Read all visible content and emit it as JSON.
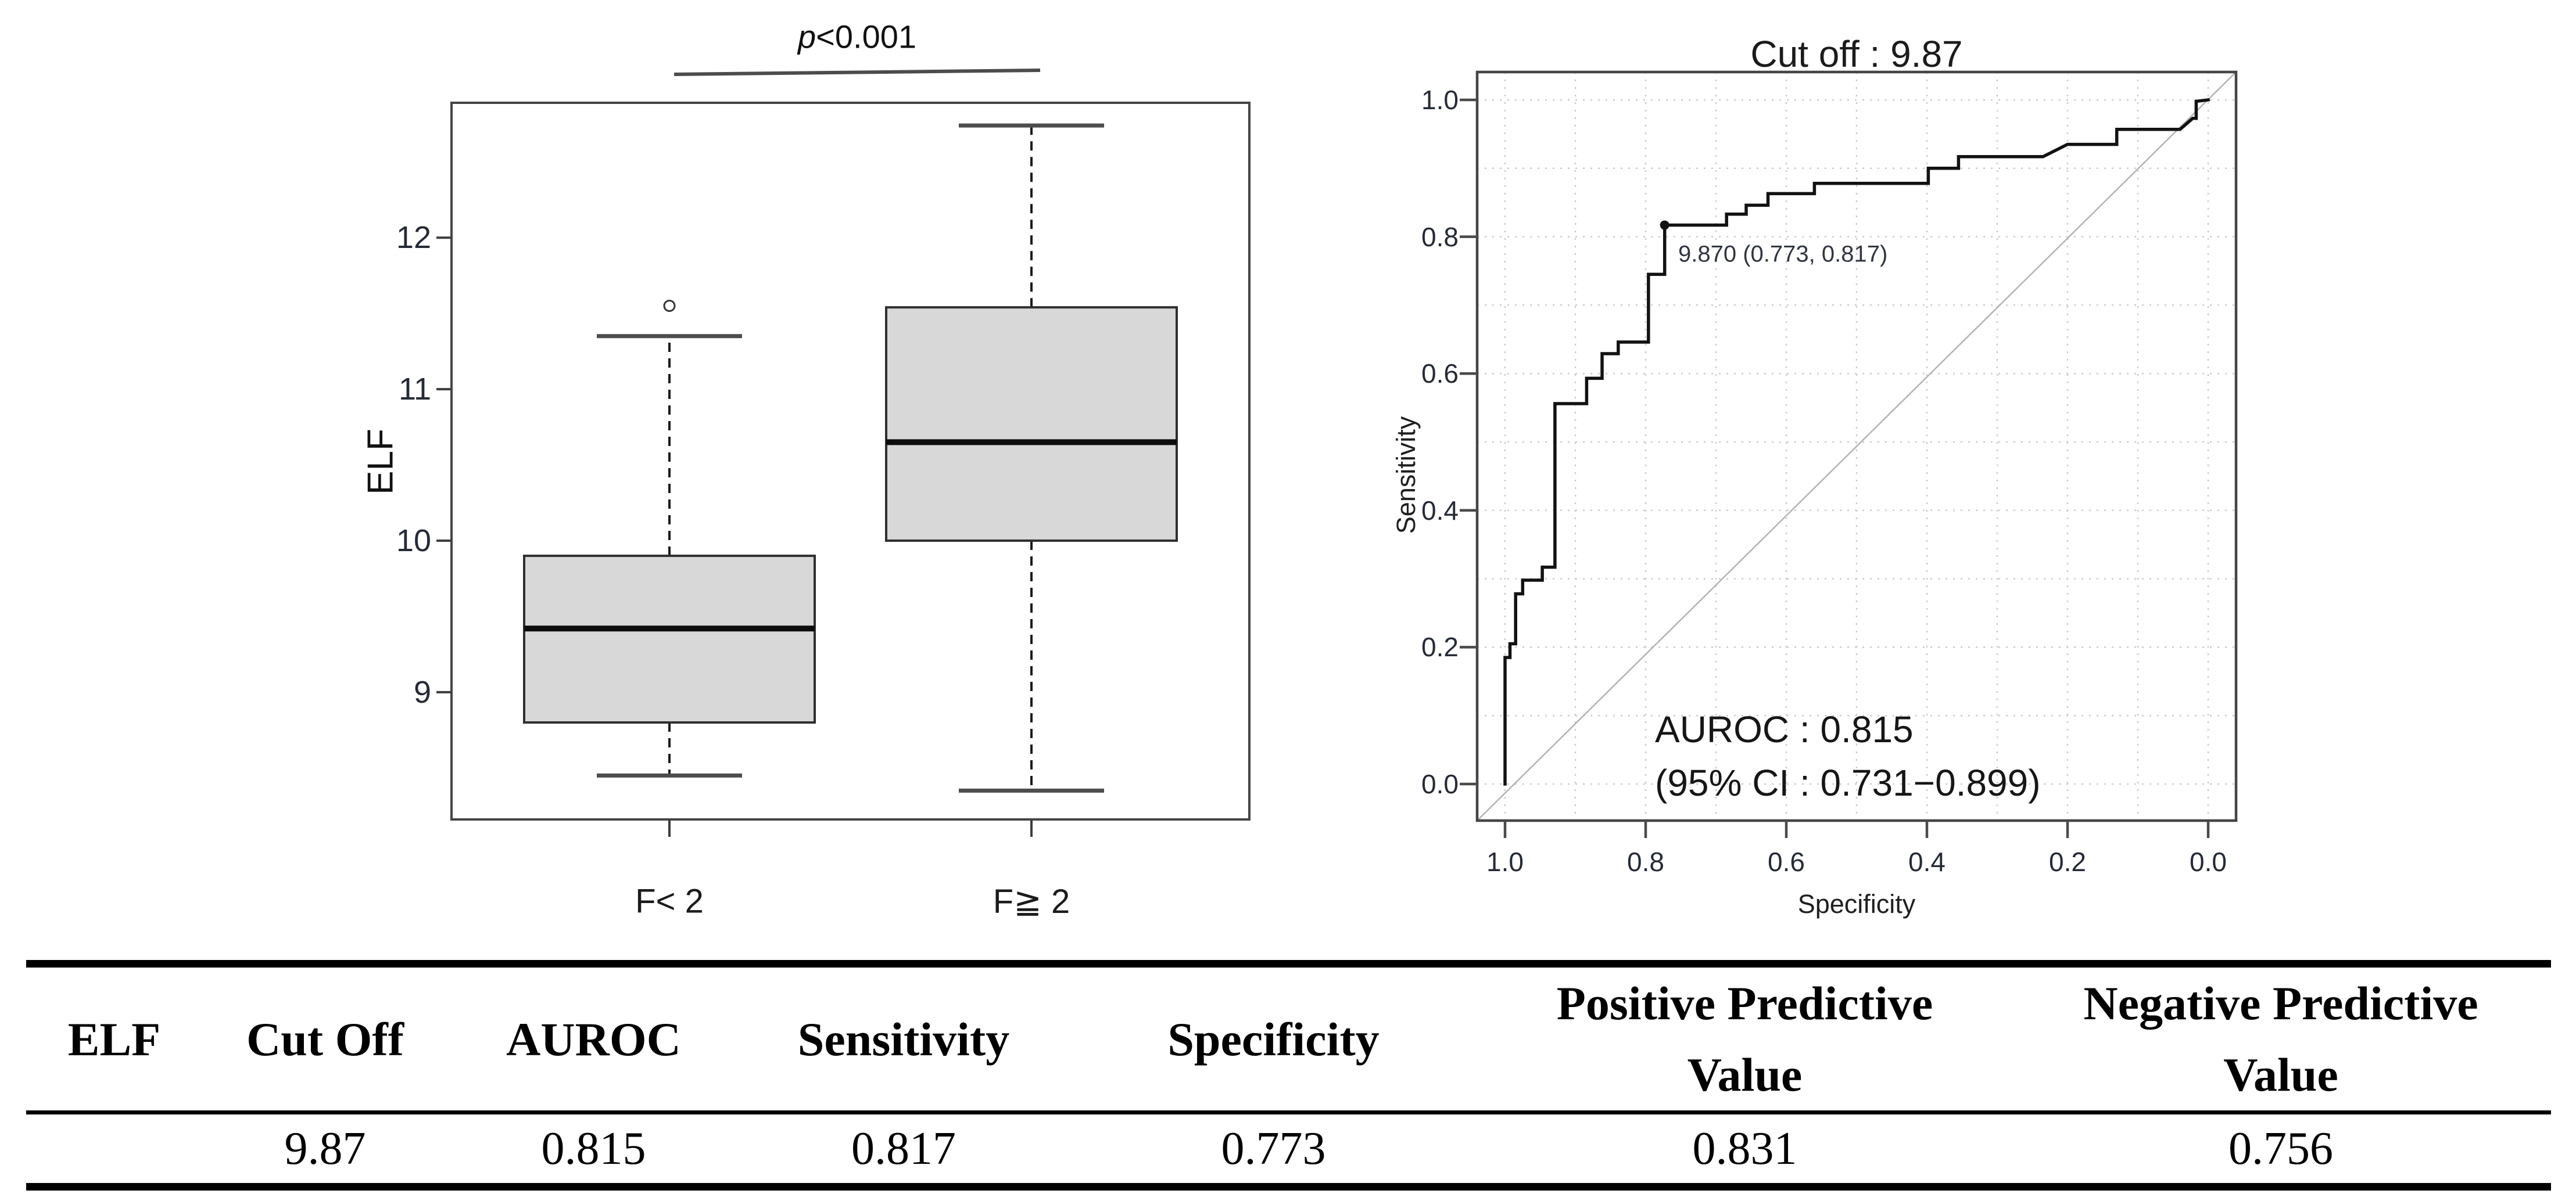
{
  "colors": {
    "background": "#ffffff",
    "box_fill": "#d8d8d8",
    "box_stroke": "#2f2f2f",
    "median": "#0d0d0d",
    "whisker": "#1a1a1a",
    "whisker_cap": "#4d4d4d",
    "frame": "#454545",
    "grid": "#cccccc",
    "diagonal": "#b3b3b3",
    "roc_curve": "#121212",
    "text": "#1b1b1b",
    "table_rule": "#000000"
  },
  "chart_data": [
    {
      "type": "box",
      "name": "elf-by-fibrosis-boxplot",
      "ylabel": "ELF",
      "ylim": [
        8.16,
        12.89
      ],
      "y_ticks": [
        9,
        10,
        11,
        12
      ],
      "grid": false,
      "p_italic": "p",
      "p_rest": "<0.001",
      "p_annotation": "p<0.001",
      "categories": [
        "F< 2",
        "F≧ 2"
      ],
      "boxes": [
        {
          "label": "F< 2",
          "whisker_low": 8.45,
          "q1": 8.8,
          "median": 9.42,
          "q3": 9.9,
          "whisker_high": 11.35,
          "outliers": [
            11.55
          ]
        },
        {
          "label": "F≧ 2",
          "whisker_low": 8.35,
          "q1": 10.0,
          "median": 10.65,
          "q3": 11.54,
          "whisker_high": 12.74,
          "outliers": []
        }
      ]
    },
    {
      "type": "line",
      "subtype": "roc",
      "name": "elf-roc-curve",
      "title": "Cut off : 9.87",
      "xlabel": "Specificity",
      "ylabel": "Sensitivity",
      "x_axis_reversed": true,
      "xlim": [
        1.0,
        0.0
      ],
      "ylim": [
        0.0,
        1.0
      ],
      "x_tick_values": [
        1.0,
        0.8,
        0.6,
        0.4,
        0.2,
        0.0
      ],
      "x_tick_labels": [
        "1.0",
        "0.8",
        "0.6",
        "0.4",
        "0.2",
        "0.0"
      ],
      "y_tick_values": [
        0.0,
        0.2,
        0.4,
        0.6,
        0.8,
        1.0
      ],
      "y_tick_labels": [
        "0.0",
        "0.2",
        "0.4",
        "0.6",
        "0.8",
        "1.0"
      ],
      "grid_step": 0.1,
      "grid": true,
      "legend_position": "none",
      "cutoff": {
        "value": 9.87,
        "specificity": 0.773,
        "sensitivity": 0.817,
        "label": "9.870 (0.773, 0.817)"
      },
      "annotation_line1": "AUROC : 0.815",
      "annotation_line2": "(95% CI : 0.731−0.899)",
      "curve": [
        [
          1.0,
          0.0
        ],
        [
          1.0,
          0.185
        ],
        [
          0.993,
          0.185
        ],
        [
          0.993,
          0.205
        ],
        [
          0.985,
          0.205
        ],
        [
          0.985,
          0.278
        ],
        [
          0.975,
          0.278
        ],
        [
          0.975,
          0.298
        ],
        [
          0.947,
          0.298
        ],
        [
          0.947,
          0.317
        ],
        [
          0.929,
          0.317
        ],
        [
          0.929,
          0.556
        ],
        [
          0.884,
          0.556
        ],
        [
          0.884,
          0.593
        ],
        [
          0.862,
          0.593
        ],
        [
          0.862,
          0.629
        ],
        [
          0.839,
          0.629
        ],
        [
          0.839,
          0.646
        ],
        [
          0.796,
          0.646
        ],
        [
          0.796,
          0.745
        ],
        [
          0.773,
          0.745
        ],
        [
          0.773,
          0.817
        ],
        [
          0.685,
          0.817
        ],
        [
          0.685,
          0.833
        ],
        [
          0.657,
          0.833
        ],
        [
          0.657,
          0.846
        ],
        [
          0.626,
          0.846
        ],
        [
          0.626,
          0.863
        ],
        [
          0.56,
          0.863
        ],
        [
          0.56,
          0.878
        ],
        [
          0.398,
          0.878
        ],
        [
          0.398,
          0.9
        ],
        [
          0.355,
          0.9
        ],
        [
          0.355,
          0.917
        ],
        [
          0.235,
          0.917
        ],
        [
          0.2,
          0.935
        ],
        [
          0.13,
          0.935
        ],
        [
          0.13,
          0.957
        ],
        [
          0.04,
          0.957
        ],
        [
          0.022,
          0.973
        ],
        [
          0.017,
          0.973
        ],
        [
          0.017,
          0.998
        ],
        [
          0.0,
          1.0
        ]
      ]
    },
    {
      "type": "table",
      "name": "elf-diagnostic-performance-table",
      "header_lines": [
        [
          "ELF"
        ],
        [
          "Cut Off"
        ],
        [
          "AUROC"
        ],
        [
          "Sensitivity"
        ],
        [
          "Specificity"
        ],
        [
          "Positive Predictive",
          "Value"
        ],
        [
          "Negative Predictive",
          "Value"
        ]
      ],
      "columns": [
        "ELF",
        "Cut Off",
        "AUROC",
        "Sensitivity",
        "Specificity",
        "Positive Predictive Value",
        "Negative Predictive Value"
      ],
      "rows": [
        [
          "",
          "9.87",
          "0.815",
          "0.817",
          "0.773",
          "0.831",
          "0.756"
        ]
      ]
    }
  ]
}
